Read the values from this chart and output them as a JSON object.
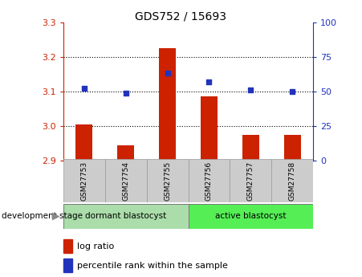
{
  "title": "GDS752 / 15693",
  "samples": [
    "GSM27753",
    "GSM27754",
    "GSM27755",
    "GSM27756",
    "GSM27757",
    "GSM27758"
  ],
  "log_ratio": [
    3.005,
    2.945,
    3.225,
    3.085,
    2.975,
    2.975
  ],
  "percentile_rank": [
    52,
    49,
    63,
    57,
    51,
    50
  ],
  "ylim_left": [
    2.9,
    3.3
  ],
  "ylim_right": [
    0,
    100
  ],
  "yticks_left": [
    2.9,
    3.0,
    3.1,
    3.2,
    3.3
  ],
  "yticks_right": [
    0,
    25,
    50,
    75,
    100
  ],
  "bar_baseline": 2.9,
  "bar_color": "#cc2200",
  "dot_color": "#2233bb",
  "groups": [
    {
      "label": "dormant blastocyst",
      "indices": [
        0,
        1,
        2
      ],
      "color": "#aaddaa"
    },
    {
      "label": "active blastocyst",
      "indices": [
        3,
        4,
        5
      ],
      "color": "#55ee55"
    }
  ],
  "group_label": "development stage",
  "left_axis_color": "#cc2200",
  "right_axis_color": "#2233bb",
  "grid_color": "#000000",
  "background_color": "#ffffff",
  "sample_box_color": "#cccccc",
  "title_fontsize": 10,
  "tick_fontsize": 8,
  "legend_fontsize": 8
}
